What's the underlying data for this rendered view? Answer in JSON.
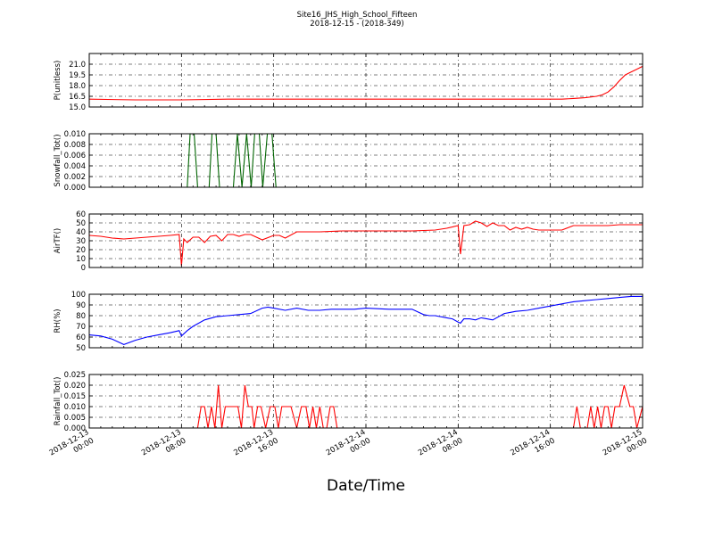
{
  "figure": {
    "title_line1": "Site16_JHS_High_School_Fifteen",
    "title_line2": "2018-12-15 - (2018-349)",
    "xlabel": "Date/Time",
    "x_ticks": [
      {
        "line1": "2018-12-13",
        "line2": "00:00"
      },
      {
        "line1": "2018-12-13",
        "line2": "08:00"
      },
      {
        "line1": "2018-12-13",
        "line2": "16:00"
      },
      {
        "line1": "2018-12-14",
        "line2": "00:00"
      },
      {
        "line1": "2018-12-14",
        "line2": "08:00"
      },
      {
        "line1": "2018-12-14",
        "line2": "16:00"
      },
      {
        "line1": "2018-12-15",
        "line2": "00:00"
      }
    ]
  },
  "chart_data": [
    {
      "type": "line",
      "ylabel": "P(unitless)",
      "ylim": [
        15.0,
        22.5
      ],
      "y_ticks": [
        15.0,
        16.5,
        18.0,
        19.5,
        21.0
      ],
      "y_tick_labels": [
        "15.0",
        "16.5",
        "18.0",
        "19.5",
        "21.0"
      ],
      "color": "#ff0000",
      "grid": true,
      "x_hours": [
        0,
        4,
        8,
        12,
        16,
        20,
        24,
        28,
        32,
        36,
        40,
        41,
        42,
        43,
        44,
        44.5,
        45,
        45.5,
        46,
        46.5,
        47,
        47.5,
        48
      ],
      "values": [
        16.1,
        16.0,
        16.0,
        16.1,
        16.1,
        16.1,
        16.1,
        16.1,
        16.1,
        16.1,
        16.1,
        16.1,
        16.2,
        16.3,
        16.5,
        16.7,
        17.1,
        17.8,
        18.7,
        19.5,
        19.9,
        20.3,
        20.7
      ]
    },
    {
      "type": "line",
      "ylabel": "Snowfall_Tot()",
      "ylim": [
        0.0,
        0.01
      ],
      "y_ticks": [
        0.0,
        0.002,
        0.004,
        0.006,
        0.008,
        0.01
      ],
      "y_tick_labels": [
        "0.000",
        "0.002",
        "0.004",
        "0.006",
        "0.008",
        "0.010"
      ],
      "color": "#006400",
      "grid": true,
      "x_hours": [
        0,
        8.0,
        8.5,
        8.75,
        9.1,
        9.4,
        10.0,
        10.4,
        10.65,
        11.0,
        11.3,
        12.0,
        12.5,
        12.85,
        13.25,
        13.65,
        14.05,
        14.35,
        14.75,
        15.05,
        15.45,
        15.85,
        16.2,
        17,
        48
      ],
      "values": [
        0,
        0,
        0,
        0.01,
        0.01,
        0,
        0,
        0,
        0.01,
        0.01,
        0,
        0,
        0,
        0.01,
        0,
        0.01,
        0,
        0.01,
        0.01,
        0,
        0.01,
        0.01,
        0,
        0,
        0
      ]
    },
    {
      "type": "line",
      "ylabel": "AirTF()",
      "ylim": [
        0,
        60
      ],
      "y_ticks": [
        0,
        10,
        20,
        30,
        40,
        50,
        60
      ],
      "y_tick_labels": [
        "0",
        "10",
        "20",
        "30",
        "40",
        "50",
        "60"
      ],
      "color": "#ff0000",
      "grid": true,
      "x_hours": [
        0,
        1,
        2,
        3,
        4,
        5,
        6,
        7,
        7.8,
        8.0,
        8.2,
        8.5,
        9,
        9.5,
        10,
        10.5,
        11,
        11.5,
        12,
        12.5,
        13,
        13.5,
        14,
        14.5,
        15,
        16,
        16.5,
        17,
        18,
        20,
        22,
        24,
        26,
        28,
        30,
        31,
        32,
        32.2,
        32.5,
        33,
        33.5,
        34,
        34.5,
        35,
        35.5,
        36,
        36.5,
        37,
        37.5,
        38,
        38.5,
        39,
        40,
        41,
        42,
        43,
        44,
        45,
        46,
        47,
        48
      ],
      "values": [
        36,
        35,
        33,
        32,
        33,
        34,
        35,
        36,
        37,
        2,
        32,
        28,
        34,
        34,
        28,
        35,
        36,
        30,
        37,
        37,
        35,
        37,
        37,
        34,
        31,
        36,
        36,
        33,
        40,
        40,
        41,
        41,
        41,
        41,
        42,
        44,
        47,
        15,
        47,
        48,
        52,
        50,
        46,
        50,
        47,
        47,
        42,
        45,
        43,
        45,
        43,
        42,
        42,
        42,
        47,
        47,
        47,
        47,
        48,
        48,
        48
      ]
    },
    {
      "type": "line",
      "ylabel": "RH(%)",
      "ylim": [
        50,
        100
      ],
      "y_ticks": [
        50,
        60,
        70,
        80,
        90,
        100
      ],
      "y_tick_labels": [
        "50",
        "60",
        "70",
        "80",
        "90",
        "100"
      ],
      "color": "#0000ff",
      "grid": true,
      "x_hours": [
        0,
        1,
        2,
        3,
        4,
        5,
        6,
        7,
        7.8,
        8,
        8.5,
        9,
        10,
        11,
        12,
        13,
        14,
        15,
        15.5,
        16,
        17,
        18,
        19,
        20,
        21,
        22,
        23,
        24,
        26,
        28,
        29,
        29.5,
        30,
        31,
        31.5,
        32,
        32.2,
        32.5,
        33,
        33.5,
        34,
        34.5,
        35,
        36,
        36.5,
        37,
        38,
        39,
        40,
        41,
        42,
        43,
        44,
        45,
        46,
        47,
        48
      ],
      "values": [
        62,
        61,
        58,
        53,
        57,
        60,
        62,
        64,
        66,
        61,
        66,
        70,
        76,
        79,
        80,
        81,
        82,
        87,
        88,
        87,
        85,
        87,
        85,
        85,
        86,
        86,
        86,
        87,
        86,
        86,
        81,
        80,
        80,
        78,
        77,
        74,
        73,
        77,
        77,
        76,
        78,
        77,
        76,
        82,
        83,
        84,
        85,
        87,
        89,
        91,
        93,
        94,
        95,
        96,
        97,
        98,
        98
      ]
    },
    {
      "type": "line",
      "ylabel": "Rainfall_Tot()",
      "ylim": [
        0.0,
        0.025
      ],
      "y_ticks": [
        0.0,
        0.005,
        0.01,
        0.015,
        0.02,
        0.025
      ],
      "y_tick_labels": [
        "0.000",
        "0.005",
        "0.010",
        "0.015",
        "0.020",
        "0.025"
      ],
      "color": "#ff0000",
      "grid": true,
      "x_hours": [
        0,
        9.4,
        9.7,
        10.0,
        10.3,
        10.6,
        10.9,
        11.2,
        11.5,
        11.8,
        12.0,
        12.5,
        12.9,
        13.2,
        13.5,
        13.8,
        14.1,
        14.3,
        14.6,
        14.9,
        15.3,
        15.7,
        16.1,
        16.4,
        16.7,
        17.1,
        17.5,
        18.0,
        18.4,
        18.8,
        19.1,
        19.4,
        19.7,
        20.0,
        20.3,
        20.6,
        20.9,
        21.2,
        21.5,
        42.0,
        42.3,
        42.6,
        42.9,
        43.2,
        43.5,
        43.8,
        44.1,
        44.4,
        44.7,
        45.0,
        45.3,
        45.6,
        46.0,
        46.4,
        46.9,
        47.2,
        47.5,
        48.0
      ],
      "values": [
        0,
        0,
        0.01,
        0.01,
        0,
        0.01,
        0,
        0.02,
        0,
        0.01,
        0.01,
        0.01,
        0.01,
        0,
        0.02,
        0.01,
        0.01,
        0,
        0.01,
        0.01,
        0,
        0.01,
        0.01,
        0,
        0.01,
        0.01,
        0.01,
        0,
        0.01,
        0.01,
        0,
        0.01,
        0,
        0.01,
        0,
        0,
        0.01,
        0.01,
        0,
        0,
        0.01,
        0,
        0,
        0,
        0.01,
        0,
        0.01,
        0,
        0.01,
        0.01,
        0,
        0.01,
        0.01,
        0.02,
        0.01,
        0.01,
        0,
        0.01
      ]
    }
  ]
}
